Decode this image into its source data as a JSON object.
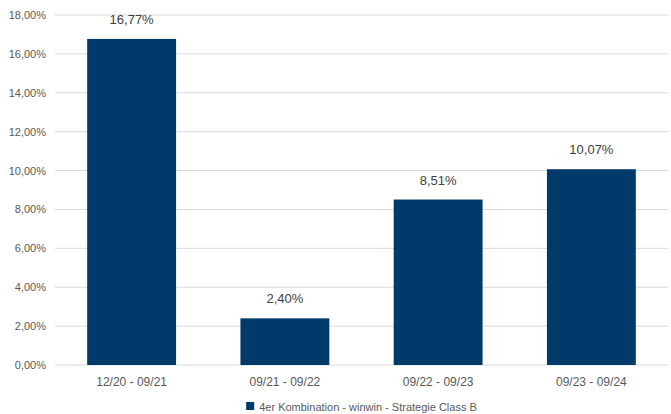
{
  "chart_data": {
    "type": "bar",
    "categories": [
      "12/20 - 09/21",
      "09/21 - 09/22",
      "09/22 - 09/23",
      "09/23 - 09/24"
    ],
    "series": [
      {
        "name": "4er Kombination - winwin - Strategie Class B",
        "color": "#003a6b",
        "values": [
          16.77,
          2.4,
          8.51,
          10.07
        ],
        "value_labels": [
          "16,77%",
          "2,40%",
          "8,51%",
          "10,07%"
        ]
      }
    ],
    "ylim": [
      0,
      18
    ],
    "yticks": [
      {
        "value": 0,
        "label": "0,00%"
      },
      {
        "value": 2,
        "label": "2,00%"
      },
      {
        "value": 4,
        "label": "4,00%"
      },
      {
        "value": 6,
        "label": "6,00%"
      },
      {
        "value": 8,
        "label": "8,00%"
      },
      {
        "value": 10,
        "label": "10,00%"
      },
      {
        "value": 12,
        "label": "12,00%"
      },
      {
        "value": 14,
        "label": "14,00%"
      },
      {
        "value": 16,
        "label": "16,00%"
      },
      {
        "value": 18,
        "label": "18,00%"
      }
    ],
    "grid": true,
    "data_labels": true,
    "legend": "bottom"
  }
}
